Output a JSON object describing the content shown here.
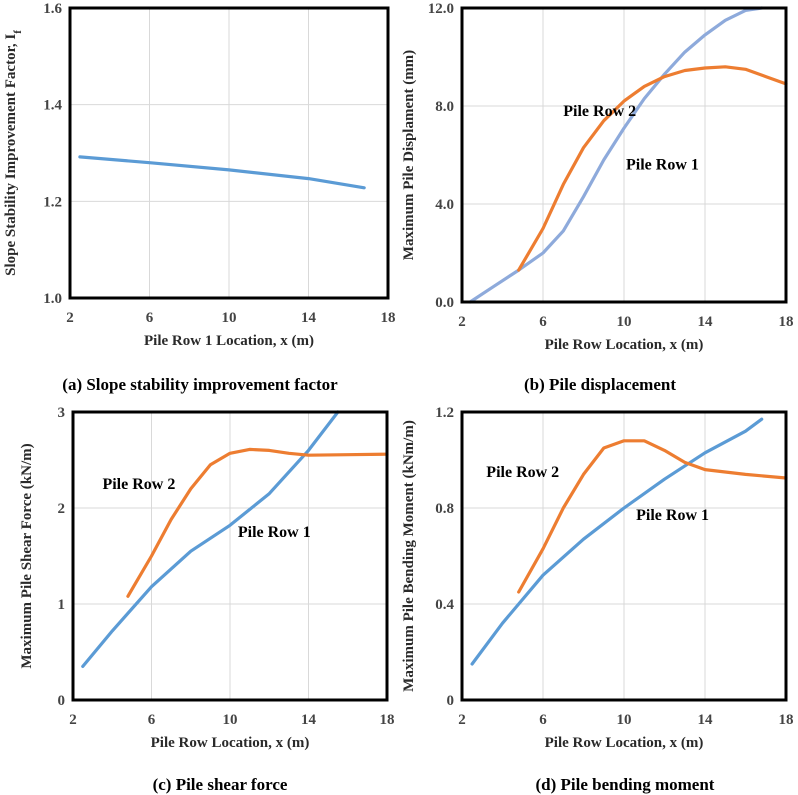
{
  "colors": {
    "pile_row_1": "#5b9bd5",
    "pile_row_1_light": "#8eaadb",
    "pile_row_2": "#ed7d31",
    "frame": "#000000",
    "grid": "#d9d9d9"
  },
  "chart_data": [
    {
      "type": "line",
      "caption": "(a)  Slope stability improvement factor",
      "xlabel": "Pile Row 1 Location, x (m)",
      "ylabel": "Slope Stability  Improvement  Factor, I",
      "ylabel_sub": "f",
      "xlim": [
        2,
        18
      ],
      "ylim": [
        1.0,
        1.6
      ],
      "xticks": [
        "2",
        "6",
        "10",
        "14",
        "18"
      ],
      "yticks": [
        "1.0",
        "1.2",
        "1.4",
        "1.6"
      ],
      "xtick_values": [
        2,
        6,
        10,
        14,
        18
      ],
      "ytick_values": [
        1.0,
        1.2,
        1.4,
        1.6
      ],
      "grid": true,
      "series": [
        {
          "color": "#5b9bd5",
          "points": [
            [
              2.5,
              1.292
            ],
            [
              6,
              1.28
            ],
            [
              10,
              1.265
            ],
            [
              14,
              1.247
            ],
            [
              16.8,
              1.228
            ]
          ]
        }
      ],
      "annotations": []
    },
    {
      "type": "line",
      "caption": "(b) Pile displacement",
      "xlabel": "Pile Row Location, x (m)",
      "ylabel": "Maximum Pile Displament (mm)",
      "xlim": [
        2,
        18
      ],
      "ylim": [
        0,
        12
      ],
      "xticks": [
        "2",
        "6",
        "10",
        "14",
        "18"
      ],
      "yticks": [
        "0.0",
        "4.0",
        "8.0",
        "12.0"
      ],
      "xtick_values": [
        2,
        6,
        10,
        14,
        18
      ],
      "ytick_values": [
        0,
        4,
        8,
        12
      ],
      "grid": true,
      "series": [
        {
          "name": "Pile Row 1",
          "color": "#8eaadb",
          "points": [
            [
              2.4,
              0.0
            ],
            [
              3.5,
              0.6
            ],
            [
              4.8,
              1.3
            ],
            [
              6,
              2.0
            ],
            [
              7,
              2.9
            ],
            [
              8,
              4.3
            ],
            [
              9,
              5.8
            ],
            [
              10,
              7.1
            ],
            [
              11,
              8.3
            ],
            [
              12,
              9.3
            ],
            [
              13,
              10.2
            ],
            [
              14,
              10.9
            ],
            [
              15,
              11.5
            ],
            [
              16,
              11.9
            ],
            [
              16.8,
              12.0
            ]
          ]
        },
        {
          "name": "Pile Row 2",
          "color": "#ed7d31",
          "points": [
            [
              4.8,
              1.3
            ],
            [
              6,
              3.0
            ],
            [
              7,
              4.8
            ],
            [
              8,
              6.3
            ],
            [
              9,
              7.4
            ],
            [
              10,
              8.2
            ],
            [
              11,
              8.8
            ],
            [
              12,
              9.2
            ],
            [
              13,
              9.45
            ],
            [
              14,
              9.55
            ],
            [
              15,
              9.6
            ],
            [
              16,
              9.5
            ],
            [
              17,
              9.2
            ],
            [
              18,
              8.9
            ]
          ]
        }
      ],
      "annotations": [
        {
          "text": "Pile Row 2",
          "x": 7.0,
          "y": 7.6
        },
        {
          "text": "Pile Row 1",
          "x": 10.1,
          "y": 5.4
        }
      ]
    },
    {
      "type": "line",
      "caption": "(c) Pile shear force",
      "xlabel": "Pile Row Location, x (m)",
      "ylabel": "Maximum Pile Shear Force (kN/m)",
      "xlim": [
        2,
        18
      ],
      "ylim": [
        0,
        3
      ],
      "xticks": [
        "2",
        "6",
        "10",
        "14",
        "18"
      ],
      "yticks": [
        "0",
        "1",
        "2",
        "3"
      ],
      "xtick_values": [
        2,
        6,
        10,
        14,
        18
      ],
      "ytick_values": [
        0,
        1,
        2,
        3
      ],
      "grid": true,
      "series": [
        {
          "name": "Pile Row 1",
          "color": "#5b9bd5",
          "points": [
            [
              2.5,
              0.35
            ],
            [
              4,
              0.72
            ],
            [
              6,
              1.18
            ],
            [
              8,
              1.55
            ],
            [
              10,
              1.82
            ],
            [
              12,
              2.15
            ],
            [
              14,
              2.6
            ],
            [
              15.5,
              3.0
            ]
          ]
        },
        {
          "name": "Pile Row 2",
          "color": "#ed7d31",
          "points": [
            [
              4.8,
              1.08
            ],
            [
              6,
              1.5
            ],
            [
              7,
              1.88
            ],
            [
              8,
              2.2
            ],
            [
              9,
              2.45
            ],
            [
              10,
              2.57
            ],
            [
              11,
              2.61
            ],
            [
              12,
              2.6
            ],
            [
              13,
              2.57
            ],
            [
              14,
              2.55
            ],
            [
              16,
              2.555
            ],
            [
              18,
              2.56
            ]
          ]
        }
      ],
      "annotations": [
        {
          "text": "Pile Row 2",
          "x": 3.5,
          "y": 2.2
        },
        {
          "text": "Pile Row 1",
          "x": 10.4,
          "y": 1.7
        }
      ]
    },
    {
      "type": "line",
      "caption": "(d) Pile bending moment",
      "xlabel": "Pile Row Location, x (m)",
      "ylabel": "Maximum Pile Bending Moment (kNm/m)",
      "xlim": [
        2,
        18
      ],
      "ylim": [
        0,
        1.2
      ],
      "xticks": [
        "2",
        "6",
        "10",
        "14",
        "18"
      ],
      "yticks": [
        "0",
        "0.4",
        "0.8",
        "1.2"
      ],
      "xtick_values": [
        2,
        6,
        10,
        14,
        18
      ],
      "ytick_values": [
        0,
        0.4,
        0.8,
        1.2
      ],
      "grid": true,
      "series": [
        {
          "name": "Pile Row 1",
          "color": "#5b9bd5",
          "points": [
            [
              2.5,
              0.15
            ],
            [
              4,
              0.32
            ],
            [
              6,
              0.52
            ],
            [
              8,
              0.67
            ],
            [
              10,
              0.8
            ],
            [
              12,
              0.92
            ],
            [
              14,
              1.03
            ],
            [
              16,
              1.12
            ],
            [
              16.8,
              1.17
            ]
          ]
        },
        {
          "name": "Pile Row 2",
          "color": "#ed7d31",
          "points": [
            [
              4.8,
              0.45
            ],
            [
              6,
              0.63
            ],
            [
              7,
              0.8
            ],
            [
              8,
              0.94
            ],
            [
              9,
              1.05
            ],
            [
              10,
              1.08
            ],
            [
              11,
              1.08
            ],
            [
              12,
              1.04
            ],
            [
              13,
              0.99
            ],
            [
              14,
              0.96
            ],
            [
              16,
              0.94
            ],
            [
              18,
              0.925
            ]
          ]
        }
      ],
      "annotations": [
        {
          "text": "Pile Row 2",
          "x": 3.2,
          "y": 0.93
        },
        {
          "text": "Pile Row 1",
          "x": 10.6,
          "y": 0.75
        }
      ]
    }
  ]
}
